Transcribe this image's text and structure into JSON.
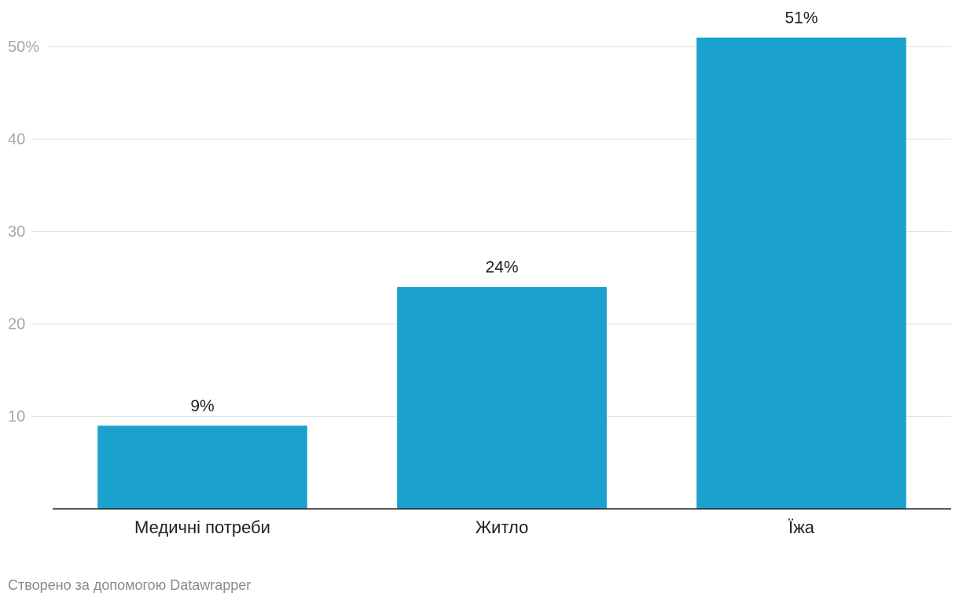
{
  "chart_data": {
    "type": "bar",
    "categories": [
      "Медичні потреби",
      "Житло",
      "Їжа"
    ],
    "values": [
      9,
      24,
      51
    ],
    "value_labels": [
      "9%",
      "24%",
      "51%"
    ],
    "color": "#1aa1cd",
    "ylim": [
      0,
      51
    ],
    "yticks": [
      10,
      20,
      30,
      40,
      {
        "value": 50,
        "label": "50%"
      }
    ],
    "grid": true,
    "credit": "Створено за допомогою Datawrapper"
  }
}
